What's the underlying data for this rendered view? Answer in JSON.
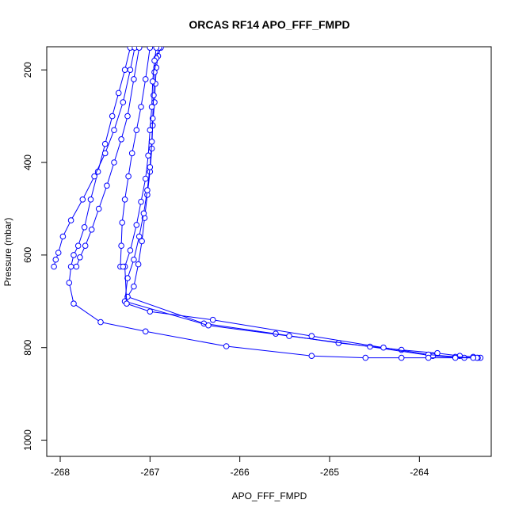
{
  "chart_data": {
    "type": "line",
    "title": "ORCAS RF14 APO_FFF_FMPD",
    "xlabel": "APO_FFF_FMPD",
    "ylabel": "Pressure (mbar)",
    "xlim": [
      -268.15,
      -263.2
    ],
    "ylim": [
      1035,
      150
    ],
    "y_reversed": true,
    "x_ticks": [
      -268,
      -267,
      -266,
      -265,
      -264
    ],
    "y_ticks": [
      200,
      400,
      600,
      800,
      1000
    ],
    "grid": false,
    "legend": "none",
    "marker": "open-circle",
    "series_color": "#0000ff",
    "series": [
      {
        "values": [
          [
            -266.88,
            152
          ],
          [
            -266.91,
            170
          ],
          [
            -266.93,
            195
          ],
          [
            -266.94,
            230
          ],
          [
            -266.95,
            270
          ],
          [
            -266.97,
            320
          ],
          [
            -266.98,
            370
          ],
          [
            -267.0,
            420
          ],
          [
            -267.03,
            470
          ],
          [
            -267.06,
            520
          ],
          [
            -267.09,
            570
          ],
          [
            -267.13,
            620
          ],
          [
            -267.18,
            668
          ],
          [
            -267.25,
            690
          ],
          [
            -266.4,
            748
          ],
          [
            -265.6,
            770
          ],
          [
            -264.9,
            790
          ],
          [
            -264.2,
            805
          ],
          [
            -263.8,
            812
          ],
          [
            -263.55,
            818
          ],
          [
            -263.4,
            820
          ],
          [
            -263.32,
            822
          ]
        ]
      },
      {
        "values": [
          [
            -266.9,
            152
          ],
          [
            -266.93,
            175
          ],
          [
            -266.95,
            205
          ],
          [
            -266.96,
            255
          ],
          [
            -266.97,
            305
          ],
          [
            -266.98,
            355
          ],
          [
            -267.0,
            410
          ],
          [
            -267.03,
            460
          ],
          [
            -267.07,
            510
          ],
          [
            -267.12,
            560
          ],
          [
            -267.18,
            610
          ],
          [
            -267.25,
            650
          ],
          [
            -267.28,
            700
          ],
          [
            -266.35,
            752
          ],
          [
            -265.45,
            775
          ],
          [
            -264.55,
            798
          ],
          [
            -263.85,
            818
          ],
          [
            -263.5,
            822
          ],
          [
            -263.35,
            822
          ]
        ]
      },
      {
        "values": [
          [
            -266.93,
            152
          ],
          [
            -266.95,
            180
          ],
          [
            -266.97,
            225
          ],
          [
            -266.98,
            280
          ],
          [
            -267.0,
            330
          ],
          [
            -267.02,
            385
          ],
          [
            -267.05,
            435
          ],
          [
            -267.1,
            485
          ],
          [
            -267.15,
            535
          ],
          [
            -267.22,
            590
          ],
          [
            -267.28,
            625
          ],
          [
            -267.26,
            705
          ],
          [
            -267.0,
            722
          ],
          [
            -266.3,
            740
          ],
          [
            -265.2,
            775
          ],
          [
            -264.4,
            800
          ],
          [
            -263.9,
            815
          ],
          [
            -263.6,
            820
          ],
          [
            -263.36,
            822
          ]
        ]
      },
      {
        "values": [
          [
            -267.22,
            152
          ],
          [
            -267.28,
            200
          ],
          [
            -267.35,
            250
          ],
          [
            -267.42,
            300
          ],
          [
            -267.5,
            360
          ],
          [
            -267.58,
            420
          ],
          [
            -267.66,
            480
          ],
          [
            -267.73,
            540
          ],
          [
            -267.8,
            580
          ],
          [
            -267.85,
            600
          ],
          [
            -267.88,
            625
          ],
          [
            -267.9,
            660
          ],
          [
            -267.85,
            705
          ],
          [
            -267.55,
            745
          ],
          [
            -267.05,
            765
          ],
          [
            -266.15,
            797
          ],
          [
            -265.2,
            818
          ],
          [
            -264.6,
            822
          ],
          [
            -264.2,
            822
          ],
          [
            -263.9,
            822
          ],
          [
            -263.6,
            822
          ],
          [
            -263.4,
            822
          ]
        ]
      },
      {
        "values": [
          [
            -267.17,
            152
          ],
          [
            -267.22,
            200
          ],
          [
            -267.3,
            270
          ],
          [
            -267.4,
            330
          ],
          [
            -267.5,
            380
          ],
          [
            -267.62,
            430
          ],
          [
            -267.75,
            480
          ],
          [
            -267.88,
            525
          ],
          [
            -267.97,
            560
          ],
          [
            -268.02,
            595
          ],
          [
            -268.05,
            610
          ],
          [
            -268.07,
            625
          ]
        ]
      },
      {
        "values": [
          [
            -267.12,
            152
          ],
          [
            -267.18,
            220
          ],
          [
            -267.25,
            300
          ],
          [
            -267.32,
            350
          ],
          [
            -267.4,
            400
          ],
          [
            -267.48,
            450
          ],
          [
            -267.57,
            500
          ],
          [
            -267.65,
            545
          ],
          [
            -267.72,
            580
          ],
          [
            -267.78,
            605
          ],
          [
            -267.82,
            625
          ]
        ]
      },
      {
        "values": [
          [
            -267.0,
            152
          ],
          [
            -267.05,
            220
          ],
          [
            -267.1,
            280
          ],
          [
            -267.15,
            330
          ],
          [
            -267.2,
            380
          ],
          [
            -267.24,
            430
          ],
          [
            -267.28,
            480
          ],
          [
            -267.31,
            530
          ],
          [
            -267.32,
            580
          ],
          [
            -267.33,
            625
          ],
          [
            -267.3,
            625
          ]
        ]
      }
    ]
  }
}
